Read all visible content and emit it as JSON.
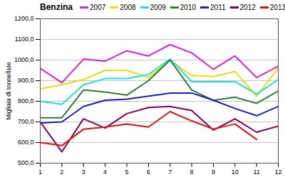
{
  "chart_data": {
    "type": "line",
    "title": "Benzina",
    "y_label": "Migliaia di tonnellate",
    "x": [
      1,
      2,
      3,
      4,
      5,
      6,
      7,
      8,
      9,
      10,
      11,
      12
    ],
    "xlim": [
      1,
      12
    ],
    "xticks": [
      1,
      2,
      3,
      4,
      5,
      6,
      7,
      8,
      9,
      10,
      11,
      12
    ],
    "ylim": [
      500,
      1200
    ],
    "yticks": [
      {
        "value": 500,
        "label": "500,0"
      },
      {
        "value": 600,
        "label": "600,0"
      },
      {
        "value": 700,
        "label": "700,0"
      },
      {
        "value": 800,
        "label": "800,0"
      },
      {
        "value": 900,
        "label": "900,0"
      },
      {
        "value": 1000,
        "label": "1000,0"
      },
      {
        "value": 1100,
        "label": "1100,0"
      },
      {
        "value": 1200,
        "label": "1200,0"
      }
    ],
    "grid": true,
    "legend": "top",
    "series": [
      {
        "name": "2007",
        "color": "#e020e0",
        "values": [
          960,
          890,
          1005,
          995,
          1045,
          1020,
          1075,
          1035,
          955,
          1020,
          915,
          970
        ]
      },
      {
        "name": "2008",
        "color": "#e8e000",
        "values": [
          860,
          880,
          905,
          950,
          950,
          915,
          1000,
          925,
          920,
          945,
          825,
          960
        ]
      },
      {
        "name": "2009",
        "color": "#20e0e0",
        "values": [
          800,
          785,
          880,
          910,
          910,
          930,
          1005,
          895,
          895,
          895,
          835,
          905
        ]
      },
      {
        "name": "2010",
        "color": "#2e7d32",
        "values": [
          720,
          720,
          855,
          845,
          830,
          900,
          1000,
          855,
          805,
          820,
          790,
          850
        ]
      },
      {
        "name": "2011",
        "color": "#1a1acc",
        "values": [
          695,
          700,
          775,
          805,
          810,
          825,
          840,
          840,
          805,
          765,
          730,
          775
        ]
      },
      {
        "name": "2012",
        "color": "#800060",
        "values": [
          700,
          555,
          715,
          670,
          740,
          770,
          775,
          755,
          660,
          715,
          650,
          680
        ]
      },
      {
        "name": "2013",
        "color": "#e01010",
        "values": [
          600,
          585,
          665,
          675,
          690,
          675,
          750,
          705,
          665,
          690,
          615,
          null
        ]
      }
    ]
  }
}
